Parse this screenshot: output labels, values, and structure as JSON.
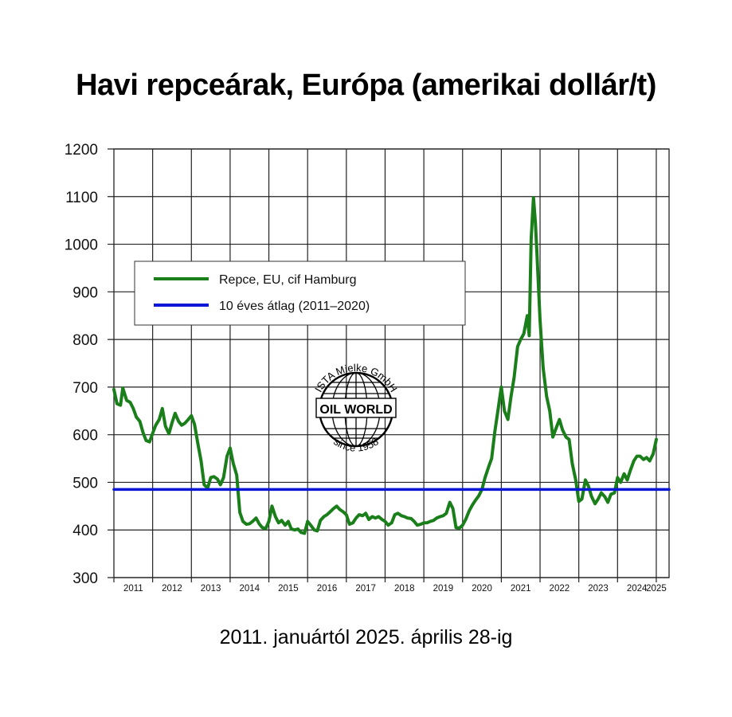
{
  "title": "Havi repceárak, Európa (amerikai dollár/t)",
  "subtitle": "2011. januártól 2025. április 28-ig",
  "logo": {
    "top_text": "ISTA Mielke GmbH",
    "center_text": "OIL WORLD",
    "bottom_text": "since 1958"
  },
  "colors": {
    "series_main": "#1a7f1a",
    "series_avg": "#0a17d6",
    "grid": "#222222"
  },
  "chart_data": {
    "type": "line",
    "title": "Havi repceárak, Európa (amerikai dollár/t)",
    "subtitle": "2011. januártól 2025. április 28-ig",
    "xlabel": "",
    "ylabel": "",
    "xlim": [
      2011.0,
      2025.33
    ],
    "ylim": [
      300,
      1200
    ],
    "yticks": [
      300,
      400,
      500,
      600,
      700,
      800,
      900,
      1000,
      1100,
      1200
    ],
    "xtick_labels": [
      "2011",
      "2012",
      "2013",
      "2014",
      "2015",
      "2016",
      "2017",
      "2018",
      "2019",
      "2020",
      "2021",
      "2022",
      "2023",
      "2024",
      "2025"
    ],
    "grid": true,
    "legend_position": "upper-left",
    "series": [
      {
        "name": "Repce, EU, cif Hamburg",
        "color": "#1a7f1a",
        "points": [
          [
            2011.0,
            695
          ],
          [
            2011.08,
            665
          ],
          [
            2011.17,
            662
          ],
          [
            2011.23,
            698
          ],
          [
            2011.33,
            672
          ],
          [
            2011.42,
            668
          ],
          [
            2011.5,
            655
          ],
          [
            2011.58,
            637
          ],
          [
            2011.67,
            628
          ],
          [
            2011.75,
            605
          ],
          [
            2011.83,
            588
          ],
          [
            2011.92,
            585
          ],
          [
            2012.0,
            603
          ],
          [
            2012.08,
            620
          ],
          [
            2012.17,
            632
          ],
          [
            2012.25,
            655
          ],
          [
            2012.33,
            618
          ],
          [
            2012.42,
            602
          ],
          [
            2012.5,
            625
          ],
          [
            2012.58,
            645
          ],
          [
            2012.67,
            628
          ],
          [
            2012.75,
            620
          ],
          [
            2012.83,
            624
          ],
          [
            2012.92,
            632
          ],
          [
            2013.0,
            640
          ],
          [
            2013.08,
            622
          ],
          [
            2013.17,
            580
          ],
          [
            2013.25,
            545
          ],
          [
            2013.33,
            495
          ],
          [
            2013.42,
            488
          ],
          [
            2013.5,
            510
          ],
          [
            2013.58,
            512
          ],
          [
            2013.67,
            507
          ],
          [
            2013.75,
            495
          ],
          [
            2013.83,
            510
          ],
          [
            2013.92,
            555
          ],
          [
            2014.0,
            572
          ],
          [
            2014.08,
            540
          ],
          [
            2014.17,
            515
          ],
          [
            2014.25,
            437
          ],
          [
            2014.33,
            418
          ],
          [
            2014.42,
            412
          ],
          [
            2014.5,
            413
          ],
          [
            2014.58,
            418
          ],
          [
            2014.67,
            425
          ],
          [
            2014.75,
            413
          ],
          [
            2014.83,
            405
          ],
          [
            2014.92,
            403
          ],
          [
            2015.0,
            418
          ],
          [
            2015.08,
            450
          ],
          [
            2015.17,
            428
          ],
          [
            2015.25,
            415
          ],
          [
            2015.33,
            420
          ],
          [
            2015.42,
            410
          ],
          [
            2015.5,
            418
          ],
          [
            2015.58,
            402
          ],
          [
            2015.67,
            400
          ],
          [
            2015.75,
            402
          ],
          [
            2015.83,
            395
          ],
          [
            2015.92,
            393
          ],
          [
            2016.0,
            418
          ],
          [
            2016.08,
            410
          ],
          [
            2016.17,
            400
          ],
          [
            2016.25,
            398
          ],
          [
            2016.33,
            420
          ],
          [
            2016.42,
            428
          ],
          [
            2016.5,
            432
          ],
          [
            2016.58,
            438
          ],
          [
            2016.67,
            445
          ],
          [
            2016.75,
            450
          ],
          [
            2016.83,
            443
          ],
          [
            2016.92,
            438
          ],
          [
            2017.0,
            432
          ],
          [
            2017.08,
            412
          ],
          [
            2017.17,
            415
          ],
          [
            2017.25,
            425
          ],
          [
            2017.33,
            432
          ],
          [
            2017.42,
            430
          ],
          [
            2017.5,
            435
          ],
          [
            2017.58,
            422
          ],
          [
            2017.67,
            428
          ],
          [
            2017.75,
            425
          ],
          [
            2017.83,
            428
          ],
          [
            2017.92,
            422
          ],
          [
            2018.0,
            418
          ],
          [
            2018.08,
            410
          ],
          [
            2018.17,
            415
          ],
          [
            2018.25,
            432
          ],
          [
            2018.33,
            435
          ],
          [
            2018.42,
            430
          ],
          [
            2018.5,
            428
          ],
          [
            2018.58,
            425
          ],
          [
            2018.67,
            424
          ],
          [
            2018.75,
            418
          ],
          [
            2018.83,
            410
          ],
          [
            2018.92,
            412
          ],
          [
            2019.0,
            415
          ],
          [
            2019.08,
            415
          ],
          [
            2019.17,
            418
          ],
          [
            2019.25,
            420
          ],
          [
            2019.33,
            425
          ],
          [
            2019.42,
            428
          ],
          [
            2019.5,
            430
          ],
          [
            2019.58,
            435
          ],
          [
            2019.67,
            458
          ],
          [
            2019.75,
            445
          ],
          [
            2019.83,
            405
          ],
          [
            2019.92,
            404
          ],
          [
            2020.0,
            410
          ],
          [
            2020.08,
            422
          ],
          [
            2020.17,
            440
          ],
          [
            2020.25,
            452
          ],
          [
            2020.33,
            462
          ],
          [
            2020.42,
            472
          ],
          [
            2020.5,
            485
          ],
          [
            2020.58,
            510
          ],
          [
            2020.67,
            532
          ],
          [
            2020.75,
            550
          ],
          [
            2020.83,
            605
          ],
          [
            2020.92,
            655
          ],
          [
            2021.0,
            700
          ],
          [
            2021.08,
            650
          ],
          [
            2021.17,
            632
          ],
          [
            2021.25,
            680
          ],
          [
            2021.33,
            720
          ],
          [
            2021.42,
            785
          ],
          [
            2021.5,
            800
          ],
          [
            2021.58,
            812
          ],
          [
            2021.67,
            850
          ],
          [
            2021.72,
            808
          ],
          [
            2021.77,
            1010
          ],
          [
            2021.83,
            1098
          ],
          [
            2021.88,
            1045
          ],
          [
            2021.92,
            980
          ],
          [
            2022.0,
            840
          ],
          [
            2022.08,
            740
          ],
          [
            2022.17,
            680
          ],
          [
            2022.25,
            650
          ],
          [
            2022.33,
            595
          ],
          [
            2022.42,
            615
          ],
          [
            2022.5,
            632
          ],
          [
            2022.58,
            610
          ],
          [
            2022.67,
            595
          ],
          [
            2022.75,
            590
          ],
          [
            2022.83,
            540
          ],
          [
            2022.92,
            505
          ],
          [
            2023.0,
            460
          ],
          [
            2023.08,
            465
          ],
          [
            2023.17,
            505
          ],
          [
            2023.25,
            492
          ],
          [
            2023.33,
            470
          ],
          [
            2023.42,
            455
          ],
          [
            2023.5,
            465
          ],
          [
            2023.58,
            478
          ],
          [
            2023.67,
            470
          ],
          [
            2023.75,
            458
          ],
          [
            2023.83,
            475
          ],
          [
            2023.92,
            478
          ],
          [
            2024.0,
            510
          ],
          [
            2024.08,
            500
          ],
          [
            2024.17,
            518
          ],
          [
            2024.25,
            505
          ],
          [
            2024.33,
            525
          ],
          [
            2024.42,
            545
          ],
          [
            2024.5,
            555
          ],
          [
            2024.58,
            555
          ],
          [
            2024.67,
            548
          ],
          [
            2024.75,
            552
          ],
          [
            2024.83,
            545
          ],
          [
            2024.92,
            560
          ],
          [
            2025.0,
            590
          ]
        ]
      },
      {
        "name": "10 éves átlag (2011–2020)",
        "color": "#0a17d6",
        "points": [
          [
            2011.0,
            485
          ],
          [
            2025.33,
            485
          ]
        ]
      }
    ]
  }
}
